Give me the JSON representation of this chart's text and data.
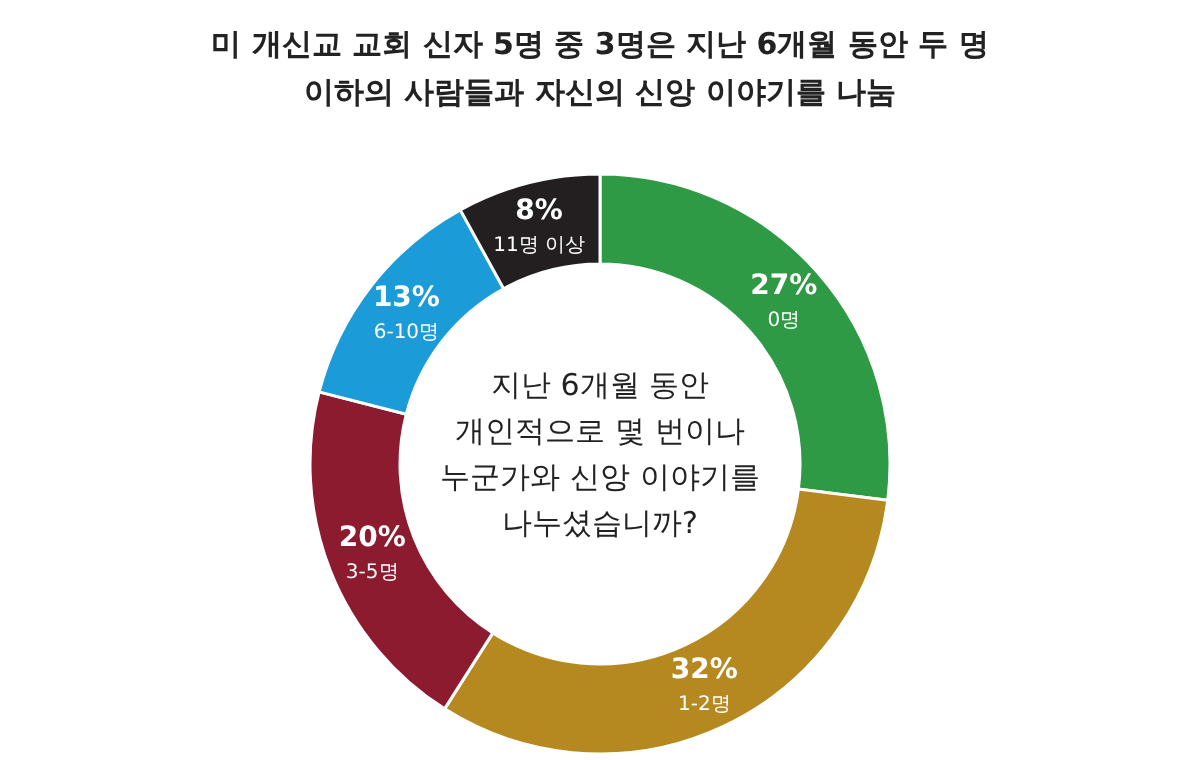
{
  "chart_data": {
    "type": "donut",
    "title": "미 개신교 교회 신자 5명 중 3명은 지난 6개월 동안 두 명 이하의 사람들과 자신의 신앙 이야기를 나눔",
    "categories": [
      "0명",
      "1-2명",
      "3-5명",
      "6-10명",
      "11명 이상"
    ],
    "values": [
      27,
      32,
      20,
      13,
      8
    ],
    "colors": [
      "#2f9a45",
      "#b5891f",
      "#8c1b2f",
      "#1b9bd7",
      "#231f20"
    ],
    "value_labels": [
      "27%",
      "32%",
      "20%",
      "13%",
      "8%"
    ],
    "annotations": [
      "지난 6개월 동안 개인적으로 몇 번이나 누군가와 신앙 이야기를 나누셨습니까?"
    ]
  }
}
